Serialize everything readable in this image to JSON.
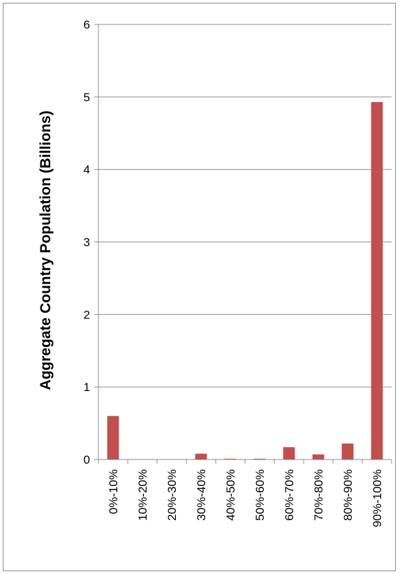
{
  "chart_data": {
    "type": "bar",
    "title": "",
    "xlabel": "",
    "ylabel": "Aggregate Country Population (Billions)",
    "categories": [
      "0%-10%",
      "10%-20%",
      "20%-30%",
      "30%-40%",
      "40%-50%",
      "50%-60%",
      "60%-70%",
      "70%-80%",
      "80%-90%",
      "90%-100%"
    ],
    "values": [
      0.6,
      0.0,
      0.0,
      0.08,
      0.01,
      0.01,
      0.17,
      0.07,
      0.22,
      4.93
    ],
    "ylim": [
      0,
      6
    ],
    "yticks": [
      "0",
      "1",
      "2",
      "3",
      "4",
      "5",
      "6"
    ],
    "grid": true,
    "legend": "none",
    "bar_color": "#c0504d",
    "grid_color": "#8c8c8c"
  }
}
